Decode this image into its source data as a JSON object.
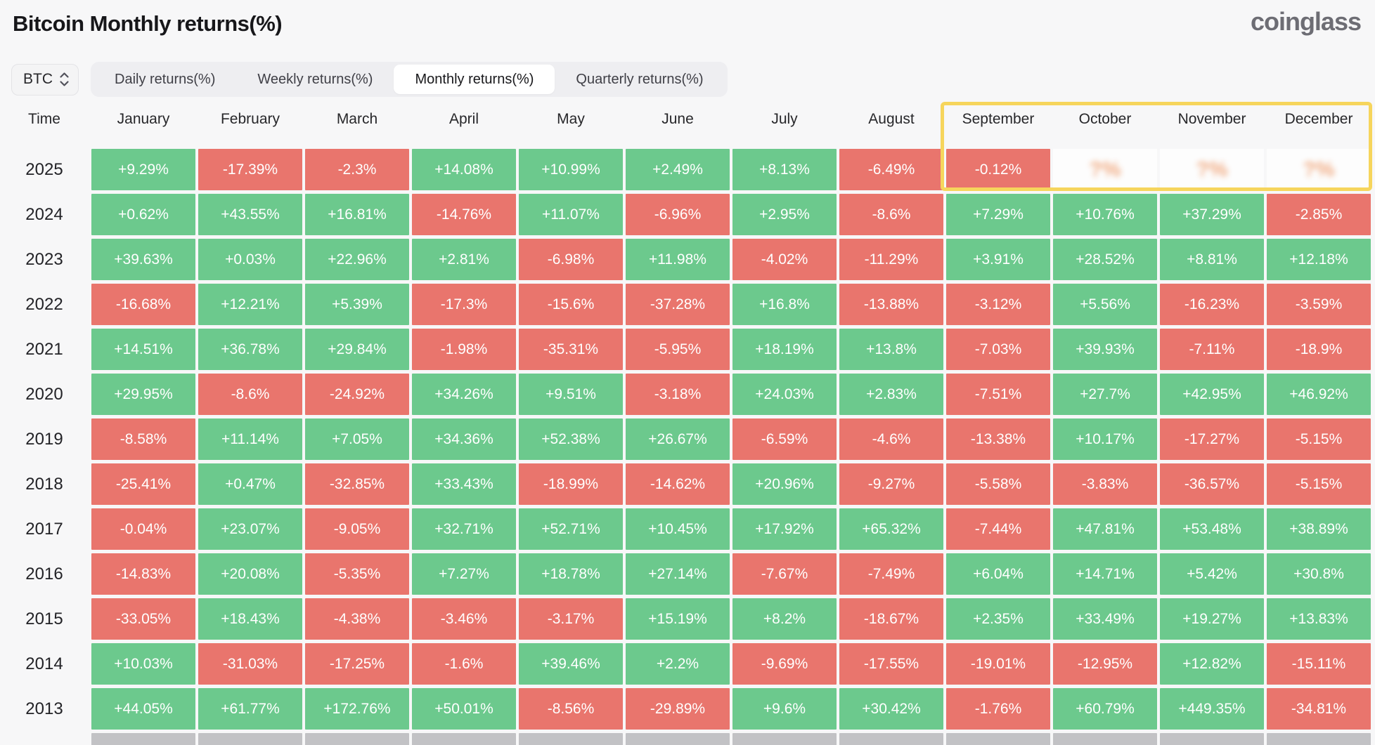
{
  "header": {
    "title": "Bitcoin Monthly returns(%)",
    "logo": "coinglass"
  },
  "controls": {
    "symbol_select": {
      "value": "BTC"
    },
    "tabs": [
      {
        "label": "Daily returns(%)",
        "active": false
      },
      {
        "label": "Weekly returns(%)",
        "active": false
      },
      {
        "label": "Monthly returns(%)",
        "active": true
      },
      {
        "label": "Quarterly returns(%)",
        "active": false
      }
    ]
  },
  "chart_data": {
    "type": "heatmap",
    "title": "Bitcoin Monthly returns(%)",
    "columns": [
      "Time",
      "January",
      "February",
      "March",
      "April",
      "May",
      "June",
      "July",
      "August",
      "September",
      "October",
      "November",
      "December"
    ],
    "rows": [
      {
        "year": "2025",
        "values": [
          "+9.29%",
          "-17.39%",
          "-2.3%",
          "+14.08%",
          "+10.99%",
          "+2.49%",
          "+8.13%",
          "-6.49%",
          "-0.12%",
          "?%",
          "?%",
          "?%"
        ]
      },
      {
        "year": "2024",
        "values": [
          "+0.62%",
          "+43.55%",
          "+16.81%",
          "-14.76%",
          "+11.07%",
          "-6.96%",
          "+2.95%",
          "-8.6%",
          "+7.29%",
          "+10.76%",
          "+37.29%",
          "-2.85%"
        ]
      },
      {
        "year": "2023",
        "values": [
          "+39.63%",
          "+0.03%",
          "+22.96%",
          "+2.81%",
          "-6.98%",
          "+11.98%",
          "-4.02%",
          "-11.29%",
          "+3.91%",
          "+28.52%",
          "+8.81%",
          "+12.18%"
        ]
      },
      {
        "year": "2022",
        "values": [
          "-16.68%",
          "+12.21%",
          "+5.39%",
          "-17.3%",
          "-15.6%",
          "-37.28%",
          "+16.8%",
          "-13.88%",
          "-3.12%",
          "+5.56%",
          "-16.23%",
          "-3.59%"
        ]
      },
      {
        "year": "2021",
        "values": [
          "+14.51%",
          "+36.78%",
          "+29.84%",
          "-1.98%",
          "-35.31%",
          "-5.95%",
          "+18.19%",
          "+13.8%",
          "-7.03%",
          "+39.93%",
          "-7.11%",
          "-18.9%"
        ]
      },
      {
        "year": "2020",
        "values": [
          "+29.95%",
          "-8.6%",
          "-24.92%",
          "+34.26%",
          "+9.51%",
          "-3.18%",
          "+24.03%",
          "+2.83%",
          "-7.51%",
          "+27.7%",
          "+42.95%",
          "+46.92%"
        ]
      },
      {
        "year": "2019",
        "values": [
          "-8.58%",
          "+11.14%",
          "+7.05%",
          "+34.36%",
          "+52.38%",
          "+26.67%",
          "-6.59%",
          "-4.6%",
          "-13.38%",
          "+10.17%",
          "-17.27%",
          "-5.15%"
        ]
      },
      {
        "year": "2018",
        "values": [
          "-25.41%",
          "+0.47%",
          "-32.85%",
          "+33.43%",
          "-18.99%",
          "-14.62%",
          "+20.96%",
          "-9.27%",
          "-5.58%",
          "-3.83%",
          "-36.57%",
          "-5.15%"
        ]
      },
      {
        "year": "2017",
        "values": [
          "-0.04%",
          "+23.07%",
          "-9.05%",
          "+32.71%",
          "+52.71%",
          "+10.45%",
          "+17.92%",
          "+65.32%",
          "-7.44%",
          "+47.81%",
          "+53.48%",
          "+38.89%"
        ]
      },
      {
        "year": "2016",
        "values": [
          "-14.83%",
          "+20.08%",
          "-5.35%",
          "+7.27%",
          "+18.78%",
          "+27.14%",
          "-7.67%",
          "-7.49%",
          "+6.04%",
          "+14.71%",
          "+5.42%",
          "+30.8%"
        ]
      },
      {
        "year": "2015",
        "values": [
          "-33.05%",
          "+18.43%",
          "-4.38%",
          "-3.46%",
          "-3.17%",
          "+15.19%",
          "+8.2%",
          "-18.67%",
          "+2.35%",
          "+33.49%",
          "+19.27%",
          "+13.83%"
        ]
      },
      {
        "year": "2014",
        "values": [
          "+10.03%",
          "-31.03%",
          "-17.25%",
          "-1.6%",
          "+39.46%",
          "+2.2%",
          "-9.69%",
          "-17.55%",
          "-19.01%",
          "-12.95%",
          "+12.82%",
          "-15.11%"
        ]
      },
      {
        "year": "2013",
        "values": [
          "+44.05%",
          "+61.77%",
          "+172.76%",
          "+50.01%",
          "-8.56%",
          "-29.89%",
          "+9.6%",
          "+30.42%",
          "-1.76%",
          "+60.79%",
          "+449.35%",
          "-34.81%"
        ]
      },
      {
        "year": "",
        "values": [
          "",
          "",
          "",
          "",
          "",
          "",
          "",
          "",
          "",
          "",
          "",
          ""
        ]
      }
    ],
    "colors": {
      "positive": "#6cc98d",
      "negative": "#e9756d",
      "pending_text": "#f0a87e",
      "future_row": "#c2c2c5",
      "highlight_border": "#f6d55c",
      "background": "#f7f7f8"
    },
    "highlighted_columns": [
      "September",
      "October",
      "November",
      "December"
    ],
    "highlighted_row": "2025"
  }
}
